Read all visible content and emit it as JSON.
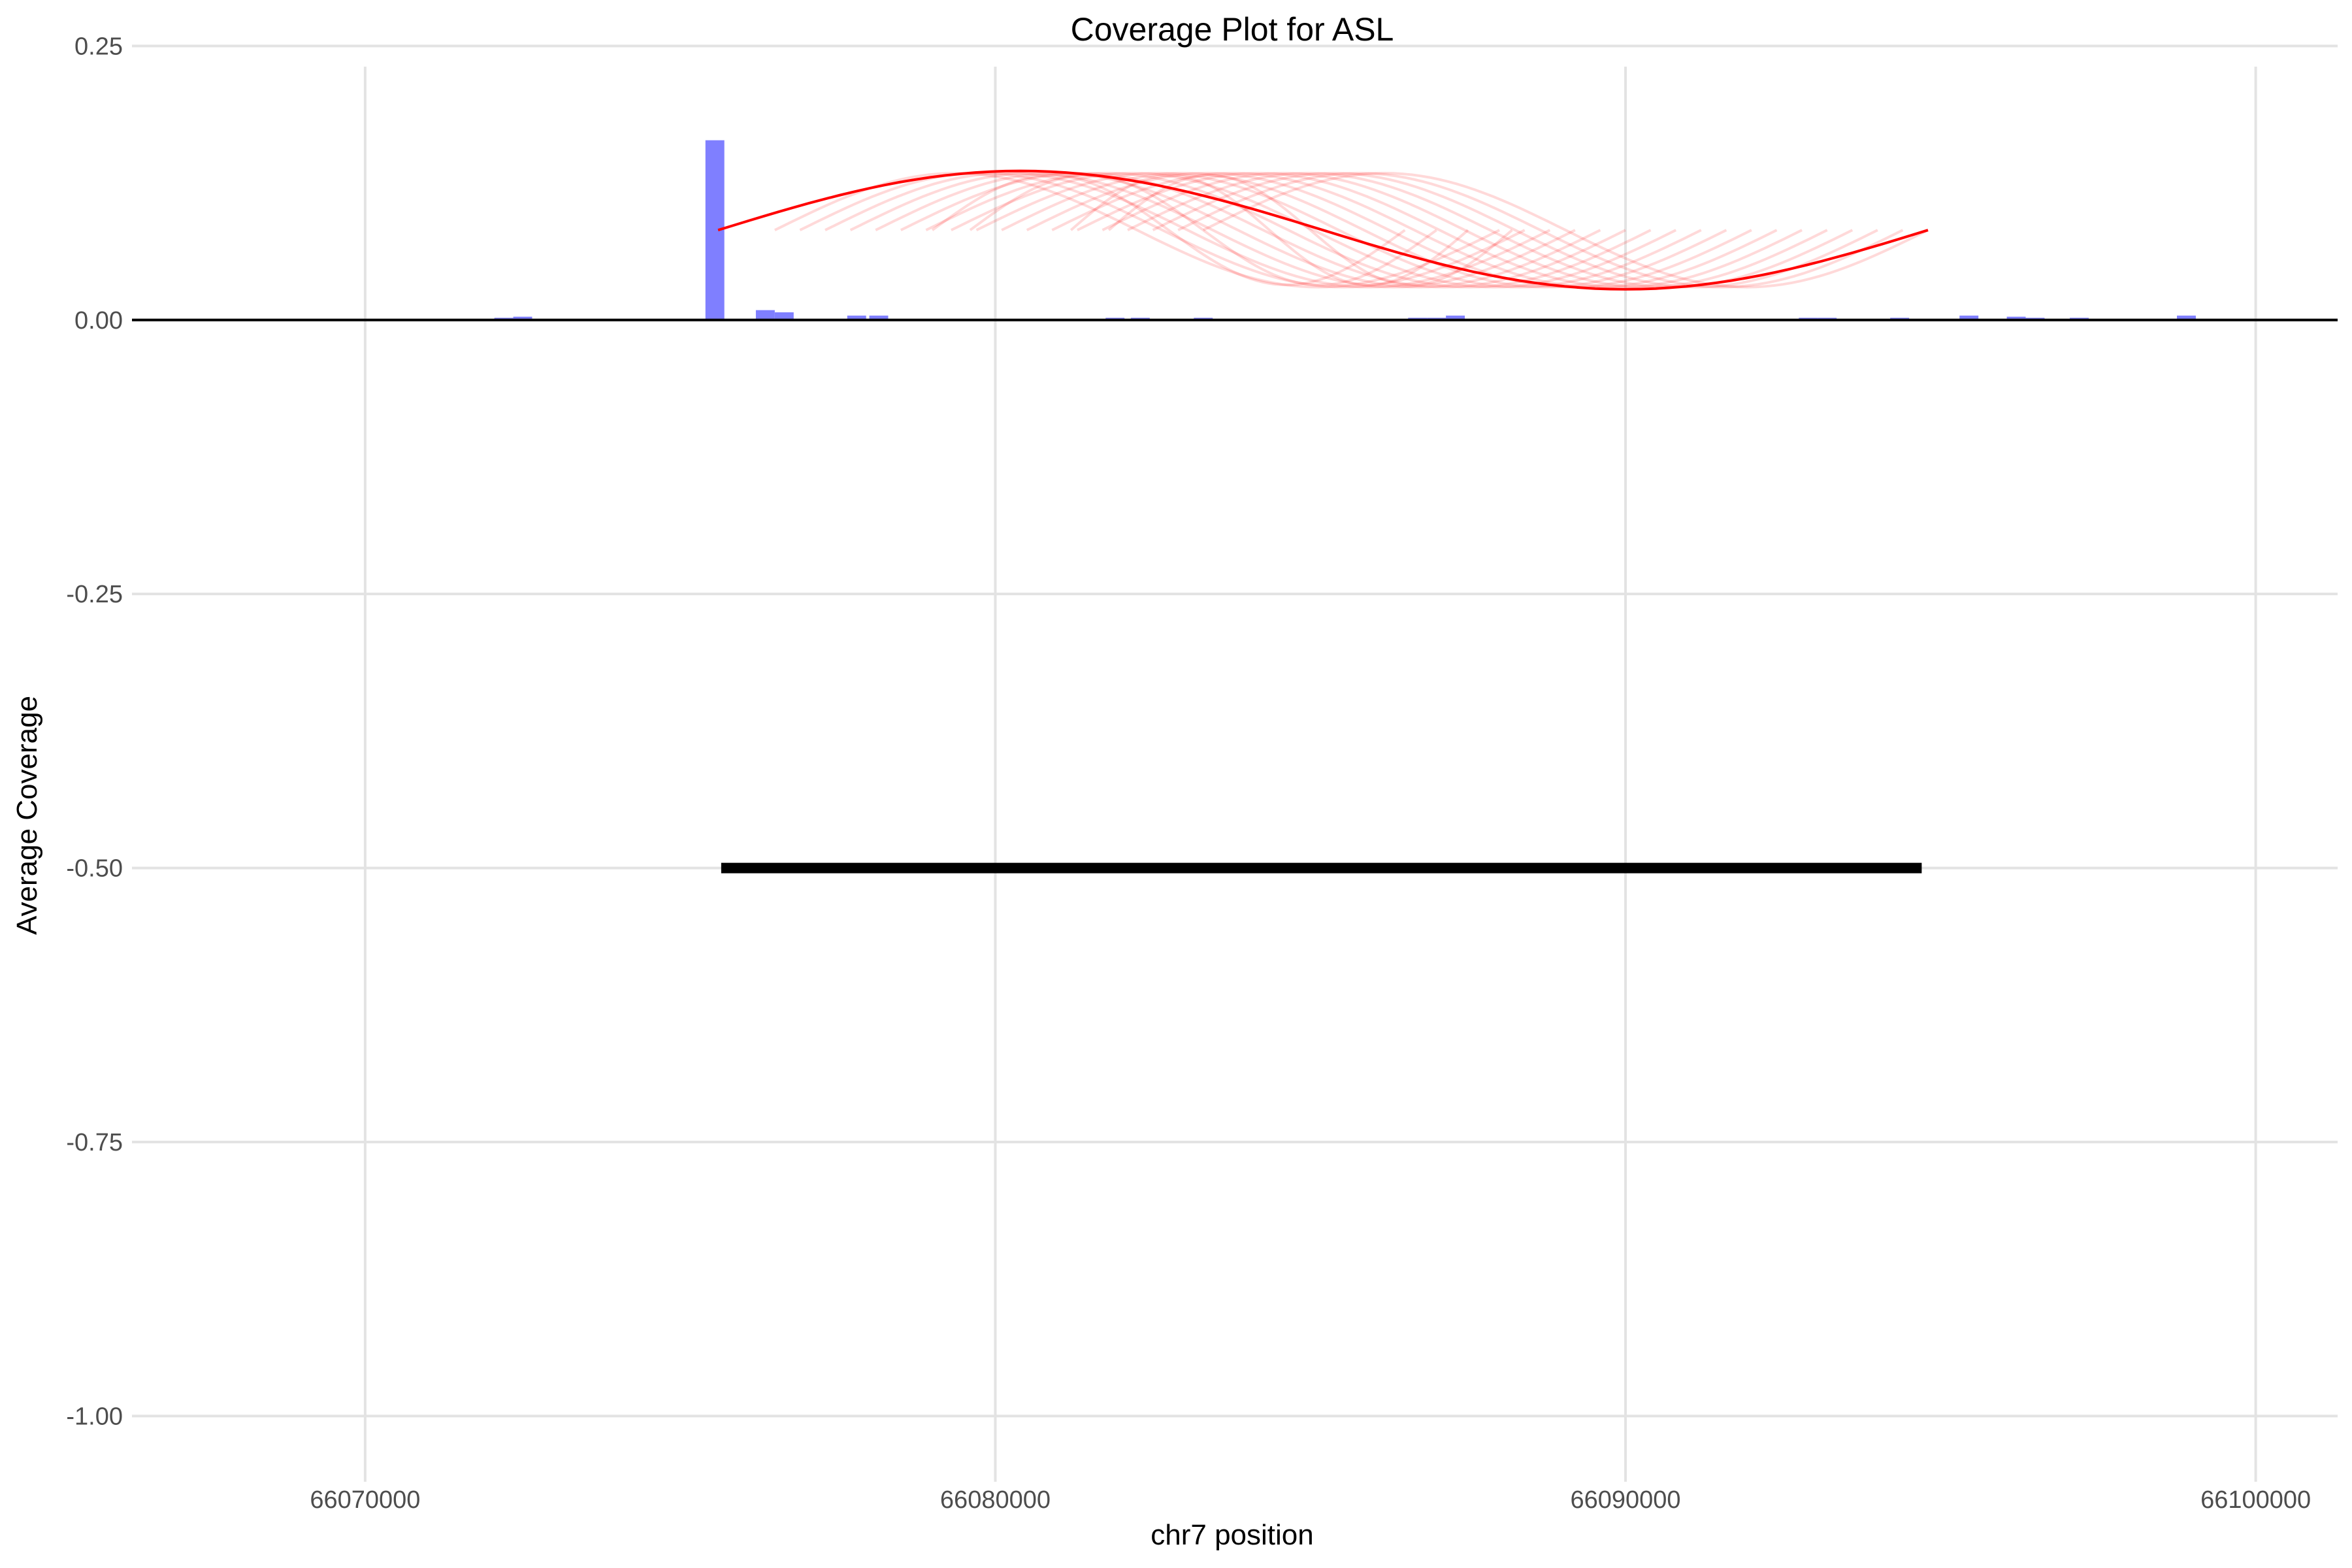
{
  "chart_data": {
    "type": "bar",
    "title": "Coverage Plot for ASL",
    "xlabel": "chr7 position",
    "ylabel": "Average Coverage",
    "xlim": [
      66066300,
      66101300
    ],
    "ylim": [
      -1.06,
      0.255
    ],
    "x_ticks": [
      66070000,
      66080000,
      66090000,
      66100000
    ],
    "x_tick_labels": [
      "66070000",
      "66080000",
      "66090000",
      "66100000"
    ],
    "y_ticks": [
      0.25,
      0.0,
      -0.25,
      -0.5,
      -0.75,
      -1.0
    ],
    "y_tick_labels": [
      "0.25",
      "0.00",
      "-0.25",
      "-0.50",
      "-0.75",
      "-1.00"
    ],
    "grid": true,
    "baseline": 0,
    "coverage_bars": {
      "color": "#7f7fff",
      "bin_width": 300,
      "bins": [
        {
          "x": 66070800,
          "y": 0.0005
        },
        {
          "x": 66071500,
          "y": 0.0005
        },
        {
          "x": 66072200,
          "y": 0.002
        },
        {
          "x": 66072500,
          "y": 0.003
        },
        {
          "x": 66072900,
          "y": 0.001
        },
        {
          "x": 66075550,
          "y": 0.164
        },
        {
          "x": 66076350,
          "y": 0.009
        },
        {
          "x": 66076650,
          "y": 0.007
        },
        {
          "x": 66077500,
          "y": 0.001
        },
        {
          "x": 66077800,
          "y": 0.004
        },
        {
          "x": 66078150,
          "y": 0.004
        },
        {
          "x": 66081100,
          "y": 0.001
        },
        {
          "x": 66081600,
          "y": 0.001
        },
        {
          "x": 66081900,
          "y": 0.002
        },
        {
          "x": 66082300,
          "y": 0.002
        },
        {
          "x": 66082900,
          "y": 0.001
        },
        {
          "x": 66083300,
          "y": 0.002
        },
        {
          "x": 66083900,
          "y": 0.001
        },
        {
          "x": 66085500,
          "y": 0.001
        },
        {
          "x": 66086300,
          "y": 0.001
        },
        {
          "x": 66086700,
          "y": 0.002
        },
        {
          "x": 66087000,
          "y": 0.002
        },
        {
          "x": 66087300,
          "y": 0.004
        },
        {
          "x": 66089700,
          "y": 0.001
        },
        {
          "x": 66091600,
          "y": 0.001
        },
        {
          "x": 66092300,
          "y": 0.001
        },
        {
          "x": 66092900,
          "y": 0.002
        },
        {
          "x": 66093200,
          "y": 0.002
        },
        {
          "x": 66093700,
          "y": 0.001
        },
        {
          "x": 66094350,
          "y": 0.002
        },
        {
          "x": 66095450,
          "y": 0.004
        },
        {
          "x": 66096200,
          "y": 0.003
        },
        {
          "x": 66096500,
          "y": 0.002
        },
        {
          "x": 66097200,
          "y": 0.002
        },
        {
          "x": 66097700,
          "y": 0.001
        },
        {
          "x": 66098900,
          "y": 0.004
        }
      ]
    },
    "junction_arcs": {
      "color": "#ff0000",
      "baseline_y": 0.082,
      "highlight": {
        "start": 66075600,
        "end": 66094800,
        "amplitude": 0.054
      },
      "faint": [
        {
          "start": 66076500,
          "end": 66088000,
          "amplitude": 0.052
        },
        {
          "start": 66076900,
          "end": 66088400,
          "amplitude": 0.052
        },
        {
          "start": 66077300,
          "end": 66088800,
          "amplitude": 0.052
        },
        {
          "start": 66077700,
          "end": 66089200,
          "amplitude": 0.052
        },
        {
          "start": 66078100,
          "end": 66089600,
          "amplitude": 0.052
        },
        {
          "start": 66078500,
          "end": 66090000,
          "amplitude": 0.052
        },
        {
          "start": 66078900,
          "end": 66090400,
          "amplitude": 0.052
        },
        {
          "start": 66079300,
          "end": 66090800,
          "amplitude": 0.052
        },
        {
          "start": 66079700,
          "end": 66091200,
          "amplitude": 0.052
        },
        {
          "start": 66080100,
          "end": 66091600,
          "amplitude": 0.052
        },
        {
          "start": 66080500,
          "end": 66092000,
          "amplitude": 0.052
        },
        {
          "start": 66080900,
          "end": 66092400,
          "amplitude": 0.052
        },
        {
          "start": 66081300,
          "end": 66092800,
          "amplitude": 0.052
        },
        {
          "start": 66081700,
          "end": 66093200,
          "amplitude": 0.052
        },
        {
          "start": 66082100,
          "end": 66093600,
          "amplitude": 0.052
        },
        {
          "start": 66082500,
          "end": 66094000,
          "amplitude": 0.052
        },
        {
          "start": 66082900,
          "end": 66094400,
          "amplitude": 0.052
        },
        {
          "start": 66083300,
          "end": 66094800,
          "amplitude": 0.052
        },
        {
          "start": 66081200,
          "end": 66087500,
          "amplitude": 0.05
        },
        {
          "start": 66081800,
          "end": 66088200,
          "amplitude": 0.05
        },
        {
          "start": 66079000,
          "end": 66086500,
          "amplitude": 0.05
        },
        {
          "start": 66079600,
          "end": 66087000,
          "amplitude": 0.05
        }
      ]
    },
    "gene_model": {
      "start": 66075650,
      "end": 66094700,
      "y": -0.5,
      "color": "#000000"
    }
  }
}
